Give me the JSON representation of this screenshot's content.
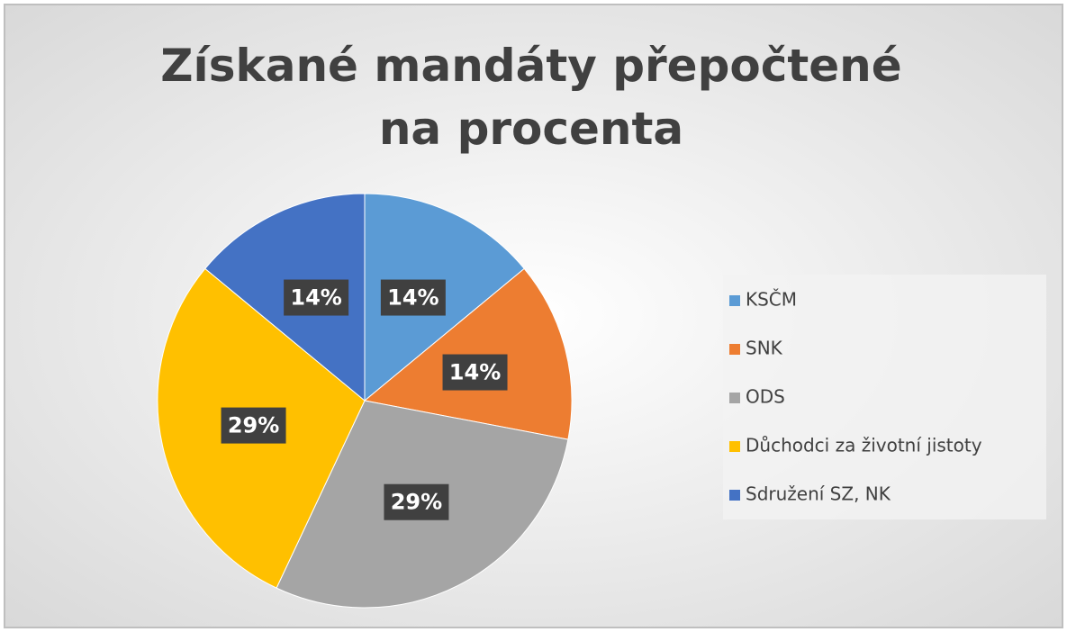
{
  "chart_data": {
    "type": "pie",
    "title": "Získané mandáty přepočtené na procenta",
    "categories": [
      "KSČM",
      "SNK",
      "ODS",
      "Důchodci za životní jistoty",
      "Sdružení SZ, NK"
    ],
    "values": [
      14,
      14,
      29,
      29,
      14
    ],
    "value_labels": [
      "14%",
      "14%",
      "29%",
      "29%",
      "14%"
    ],
    "colors": [
      "#5b9bd5",
      "#ed7d31",
      "#a5a5a5",
      "#ffc000",
      "#4472c4"
    ],
    "legend": "right"
  }
}
